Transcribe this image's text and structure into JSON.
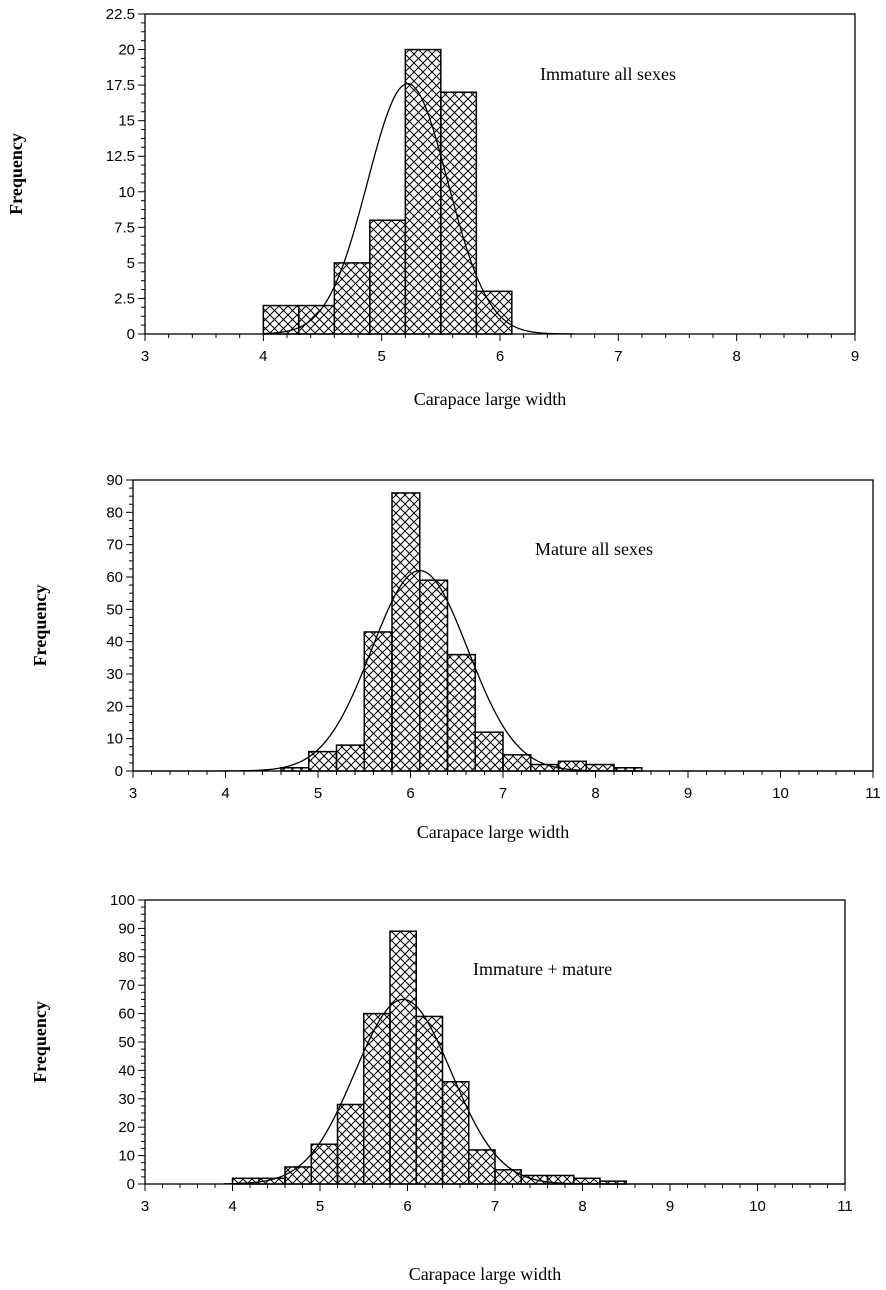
{
  "chart_data": [
    {
      "type": "bar",
      "subtype": "histogram-with-normal-curve",
      "annotation": "Immature  all sexes",
      "xlabel": "Carapace large width",
      "ylabel": "Frequency",
      "xlim": [
        3,
        9
      ],
      "ylim": [
        0,
        22.5
      ],
      "xticks": [
        "3",
        "4",
        "5",
        "6",
        "7",
        "8",
        "9"
      ],
      "yticks": [
        "0",
        "2.5",
        "5",
        "7.5",
        "10",
        "12.5",
        "15",
        "17.5",
        "20",
        "22.5"
      ],
      "bin_width": 0.3,
      "bins": [
        {
          "start": 4.0,
          "value": 2
        },
        {
          "start": 4.3,
          "value": 2
        },
        {
          "start": 4.6,
          "value": 5
        },
        {
          "start": 4.9,
          "value": 8
        },
        {
          "start": 5.2,
          "value": 20
        },
        {
          "start": 5.5,
          "value": 17
        },
        {
          "start": 5.8,
          "value": 3
        }
      ],
      "curve": {
        "mean": 5.22,
        "sd": 0.34,
        "peak": 17.6,
        "from": 4.0,
        "to": 6.62
      },
      "grid": false,
      "bar_fill": "cross-hatch"
    },
    {
      "type": "bar",
      "subtype": "histogram-with-normal-curve",
      "annotation": "Mature all sexes",
      "xlabel": "Carapace large width",
      "ylabel": "Frequency",
      "xlim": [
        3,
        11
      ],
      "ylim": [
        0,
        90
      ],
      "xticks": [
        "3",
        "4",
        "5",
        "6",
        "7",
        "8",
        "9",
        "10",
        "11"
      ],
      "yticks": [
        "0",
        "10",
        "20",
        "30",
        "40",
        "50",
        "60",
        "70",
        "80",
        "90"
      ],
      "bin_width": 0.3,
      "bins": [
        {
          "start": 4.6,
          "value": 1
        },
        {
          "start": 4.9,
          "value": 6
        },
        {
          "start": 5.2,
          "value": 8
        },
        {
          "start": 5.5,
          "value": 43
        },
        {
          "start": 5.8,
          "value": 86
        },
        {
          "start": 6.1,
          "value": 59
        },
        {
          "start": 6.4,
          "value": 36
        },
        {
          "start": 6.7,
          "value": 12
        },
        {
          "start": 7.0,
          "value": 5
        },
        {
          "start": 7.3,
          "value": 2
        },
        {
          "start": 7.6,
          "value": 3
        },
        {
          "start": 7.9,
          "value": 2
        },
        {
          "start": 8.2,
          "value": 1
        }
      ],
      "curve": {
        "mean": 6.1,
        "sd": 0.52,
        "peak": 62,
        "from": 3.0,
        "to": 11.0
      },
      "grid": false,
      "bar_fill": "cross-hatch"
    },
    {
      "type": "bar",
      "subtype": "histogram-with-normal-curve",
      "annotation": "Immature  + mature",
      "xlabel": "Carapace large width",
      "ylabel": "Frequency",
      "xlim": [
        3,
        11
      ],
      "ylim": [
        0,
        100
      ],
      "xticks": [
        "3",
        "4",
        "5",
        "6",
        "7",
        "8",
        "9",
        "10",
        "11"
      ],
      "yticks": [
        "0",
        "10",
        "20",
        "30",
        "40",
        "50",
        "60",
        "70",
        "80",
        "90",
        "100"
      ],
      "bin_width": 0.3,
      "bins": [
        {
          "start": 4.0,
          "value": 2
        },
        {
          "start": 4.3,
          "value": 2
        },
        {
          "start": 4.6,
          "value": 6
        },
        {
          "start": 4.9,
          "value": 14
        },
        {
          "start": 5.2,
          "value": 28
        },
        {
          "start": 5.5,
          "value": 60
        },
        {
          "start": 5.8,
          "value": 89
        },
        {
          "start": 6.1,
          "value": 59
        },
        {
          "start": 6.4,
          "value": 36
        },
        {
          "start": 6.7,
          "value": 12
        },
        {
          "start": 7.0,
          "value": 5
        },
        {
          "start": 7.3,
          "value": 3
        },
        {
          "start": 7.6,
          "value": 3
        },
        {
          "start": 7.9,
          "value": 2
        },
        {
          "start": 8.2,
          "value": 1
        }
      ],
      "curve": {
        "mean": 5.95,
        "sd": 0.55,
        "peak": 65,
        "from": 3.9,
        "to": 11.0
      },
      "grid": false,
      "bar_fill": "cross-hatch"
    }
  ]
}
